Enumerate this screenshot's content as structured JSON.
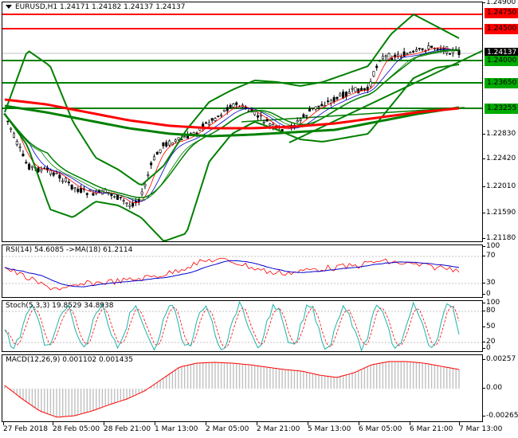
{
  "main": {
    "symbol_info": "EURUSD,H1  1.24171  1.24182  1.24137  1.24137",
    "price_ticks": [
      "1.24900",
      "1.24137",
      "1.22830",
      "1.22420",
      "1.22010",
      "1.21590",
      "1.21180"
    ],
    "labels": [
      {
        "text": "1.24750",
        "color": "red"
      },
      {
        "text": "1.24500",
        "color": "red"
      },
      {
        "text": "1.24137",
        "color": "black"
      },
      {
        "text": "1.24000",
        "color": "green"
      },
      {
        "text": "1.23650",
        "color": "green"
      },
      {
        "text": "1.23255",
        "color": "green"
      }
    ]
  },
  "rsi": {
    "title": "RSI(14) 54.6085  ->MA(18) 61.2114",
    "ticks": [
      "100",
      "70",
      "30",
      "0"
    ]
  },
  "stoch": {
    "title": "Stoch(5,3,3) 19.8529 34.8938",
    "ticks": [
      "100",
      "80",
      "50",
      "20",
      "0"
    ]
  },
  "macd": {
    "title": "MACD(12,26,9) 0.001102 0.001435",
    "ticks": [
      "0.00257",
      "0.00",
      "-0.00265"
    ]
  },
  "time_axis": [
    "27 Feb 2018",
    "28 Feb 05:00",
    "28 Feb 21:00",
    "1 Mar 13:00",
    "2 Mar 05:00",
    "2 Mar 21:00",
    "5 Mar 13:00",
    "6 Mar 05:00",
    "6 Mar 21:00",
    "7 Mar 13:00"
  ],
  "colors": {
    "resistance": "#ff0000",
    "support": "#008000",
    "bollinger": "#008000",
    "ma_long": "#ff0000",
    "ma_long2": "#008000",
    "candle": "#000000",
    "rsi": "#ff0000",
    "rsi_ma": "#0000cc",
    "stoch_main": "#20b2aa",
    "stoch_signal": "#ff0000",
    "macd_hist": "#c0c0c0",
    "macd_signal": "#ff0000"
  }
}
